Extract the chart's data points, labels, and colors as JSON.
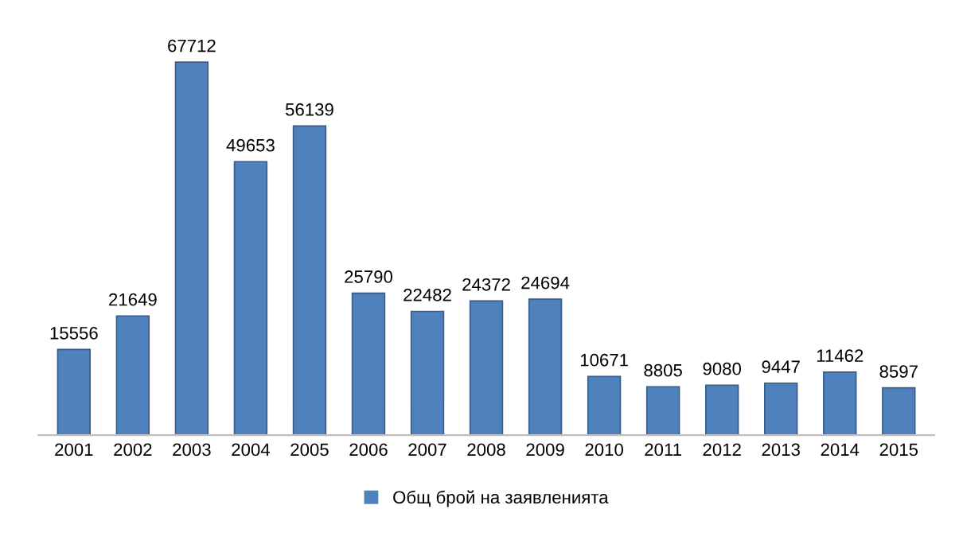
{
  "chart_data": {
    "type": "bar",
    "categories": [
      "2001",
      "2002",
      "2003",
      "2004",
      "2005",
      "2006",
      "2007",
      "2008",
      "2009",
      "2010",
      "2011",
      "2012",
      "2013",
      "2014",
      "2015"
    ],
    "series": [
      {
        "name": "Общ брой на заявленията",
        "color": "#4f81bd",
        "values": [
          15556,
          21649,
          67712,
          49653,
          56139,
          25790,
          22482,
          24372,
          24694,
          10671,
          8805,
          9080,
          9447,
          11462,
          8597
        ]
      }
    ],
    "data_labels": true,
    "legend": "bottom",
    "grid": false
  }
}
